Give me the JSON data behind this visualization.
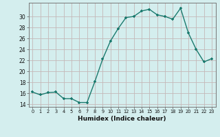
{
  "x": [
    0,
    1,
    2,
    3,
    4,
    5,
    6,
    7,
    8,
    9,
    10,
    11,
    12,
    13,
    14,
    15,
    16,
    17,
    18,
    19,
    20,
    21,
    22,
    23
  ],
  "y": [
    16.2,
    15.7,
    16.1,
    16.2,
    15.0,
    15.0,
    14.3,
    14.3,
    18.1,
    22.2,
    25.5,
    27.8,
    29.8,
    30.0,
    31.0,
    31.3,
    30.3,
    30.0,
    29.5,
    31.5,
    27.0,
    24.0,
    21.7,
    22.3
  ],
  "xlabel": "Humidex (Indice chaleur)",
  "line_color": "#1a7a6e",
  "bg_color": "#d4eeee",
  "grid_color": "#c4b8b8",
  "ylim": [
    13.5,
    32.5
  ],
  "yticks": [
    14,
    16,
    18,
    20,
    22,
    24,
    26,
    28,
    30
  ],
  "xticks": [
    0,
    1,
    2,
    3,
    4,
    5,
    6,
    7,
    8,
    9,
    10,
    11,
    12,
    13,
    14,
    15,
    16,
    17,
    18,
    19,
    20,
    21,
    22,
    23
  ]
}
